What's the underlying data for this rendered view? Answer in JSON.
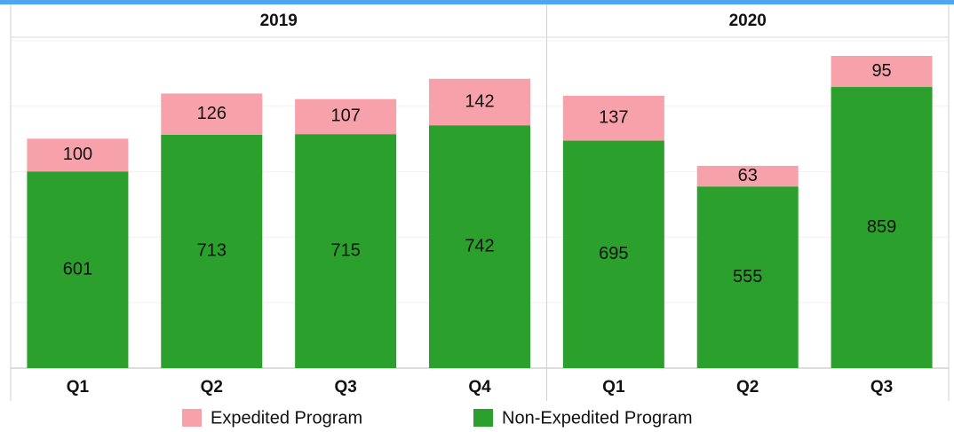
{
  "chart_data": {
    "type": "stacked_bar",
    "groups": [
      {
        "name": "2019",
        "categories": [
          "Q1",
          "Q2",
          "Q3",
          "Q4"
        ]
      },
      {
        "name": "2020",
        "categories": [
          "Q1",
          "Q2",
          "Q3"
        ]
      }
    ],
    "series": [
      {
        "name": "Non-Expedited Program",
        "color": "#2ca02c",
        "values": [
          601,
          713,
          715,
          742,
          695,
          555,
          859
        ]
      },
      {
        "name": "Expedited Program",
        "color": "#f7a1aa",
        "values": [
          100,
          126,
          107,
          142,
          137,
          63,
          95
        ]
      }
    ],
    "legend_order": [
      1,
      0
    ],
    "ylim": [
      0,
      1000
    ],
    "yticks": [
      0,
      200,
      400,
      600,
      800,
      1000
    ],
    "grid": true
  }
}
